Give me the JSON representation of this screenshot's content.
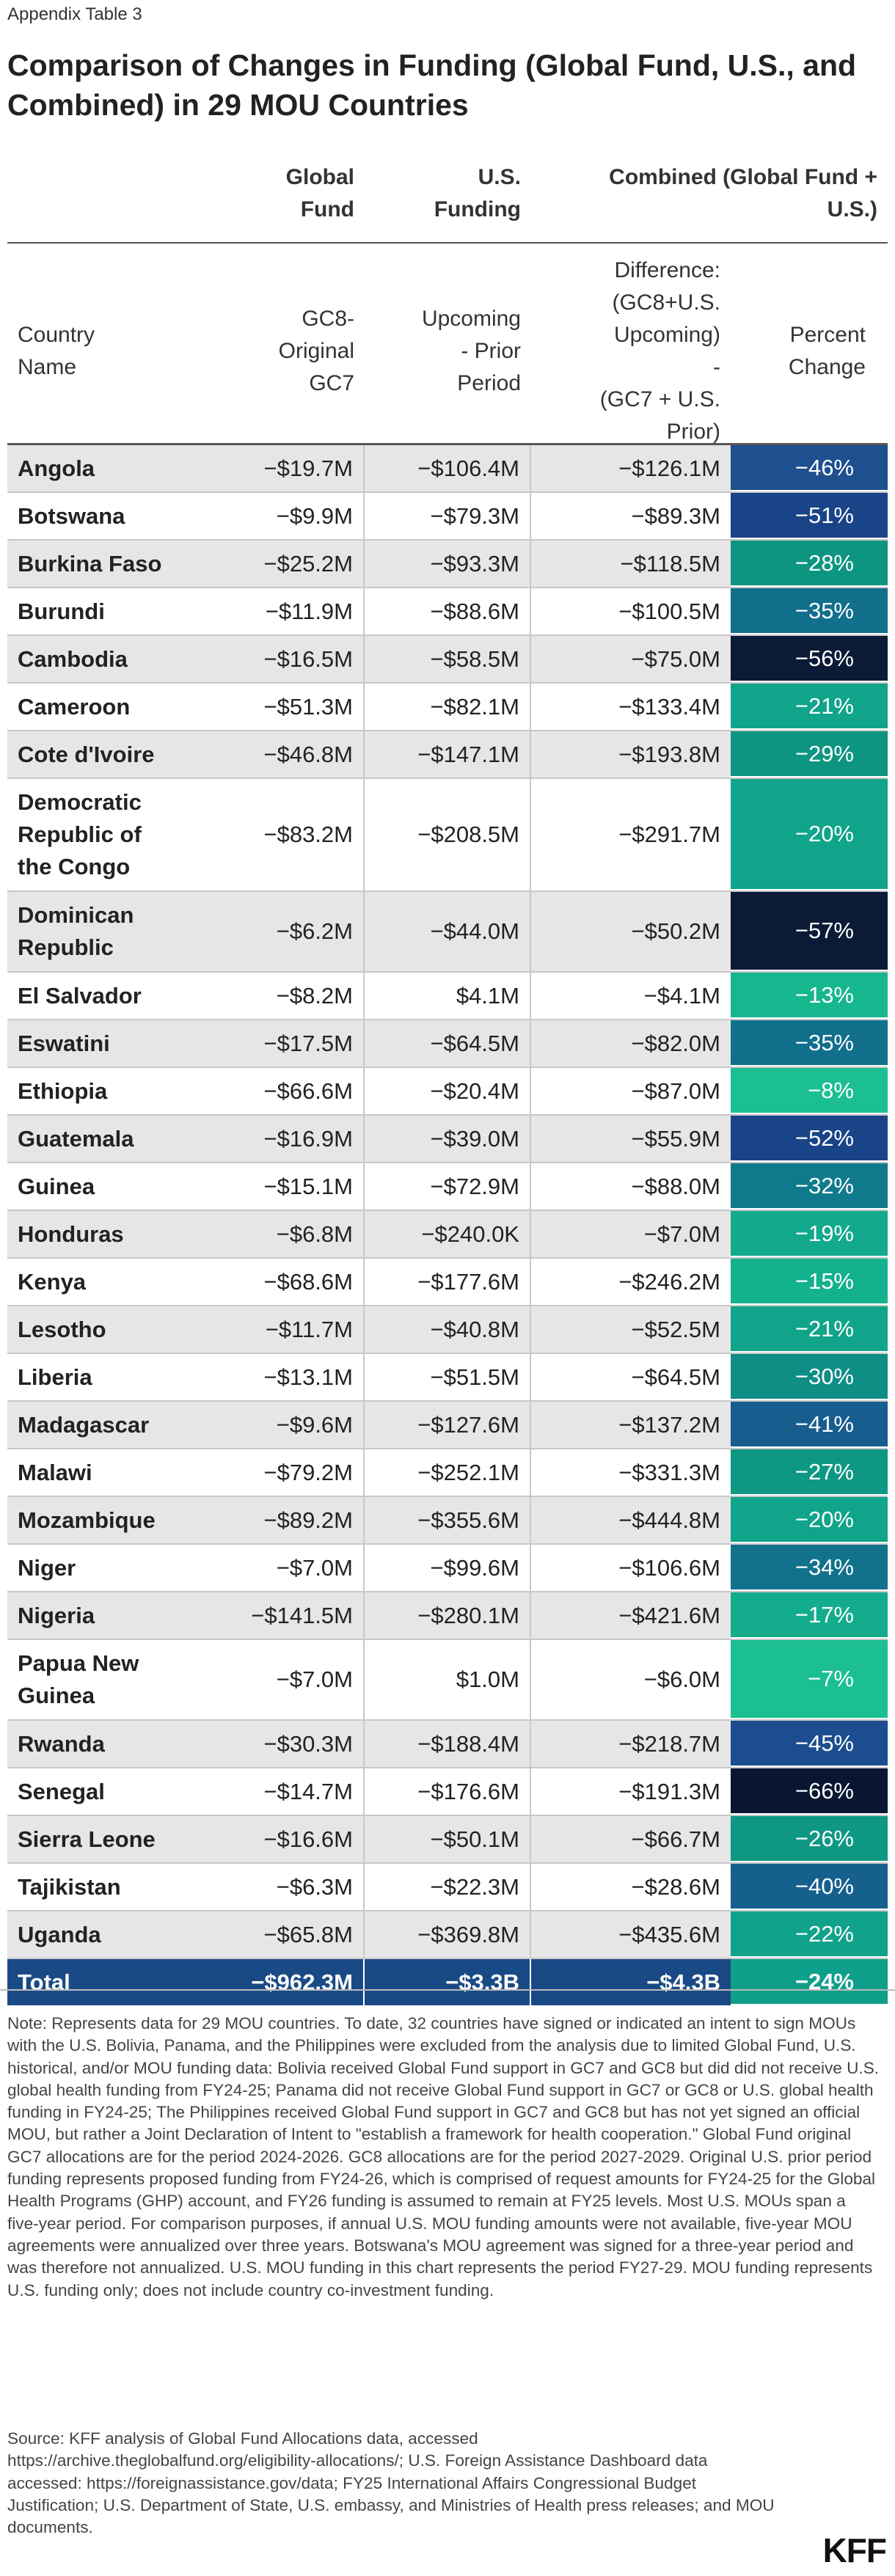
{
  "eyebrow": "Appendix Table 3",
  "title": "Comparison of Changes in Funding (Global Fund, U.S., and Combined) in 29 MOU Countries",
  "group_headers": {
    "global_fund": [
      "Global",
      "Fund"
    ],
    "us_funding": [
      "U.S.",
      "Funding"
    ],
    "combined": [
      "Combined (Global Fund +",
      "U.S.)"
    ]
  },
  "column_headers": {
    "country": [
      "Country",
      "Name"
    ],
    "gc8": [
      "GC8-",
      "Original",
      "GC7"
    ],
    "upcoming": [
      "Upcoming",
      "- Prior",
      "Period"
    ],
    "difference": [
      "Difference:",
      "(GC8+U.S.",
      "Upcoming)",
      "-",
      "(GC7 + U.S.",
      "Prior)"
    ],
    "percent": [
      "Percent",
      "Change"
    ]
  },
  "colors": {
    "total_row": "#1a4a86",
    "total_pct": "#0e9f8a",
    "stripe": "#e6e6e6"
  },
  "rows": [
    {
      "country": [
        "Angola"
      ],
      "gc8": "−$19.7M",
      "us": "−$106.4M",
      "diff": "−$126.1M",
      "pct": "−46%",
      "color": "#1e4f8f"
    },
    {
      "country": [
        "Botswana"
      ],
      "gc8": "−$9.9M",
      "us": "−$79.3M",
      "diff": "−$89.3M",
      "pct": "−51%",
      "color": "#1a4488"
    },
    {
      "country": [
        "Burkina Faso"
      ],
      "gc8": "−$25.2M",
      "us": "−$93.3M",
      "diff": "−$118.5M",
      "pct": "−28%",
      "color": "#0e9582"
    },
    {
      "country": [
        "Burundi"
      ],
      "gc8": "−$11.9M",
      "us": "−$88.6M",
      "diff": "−$100.5M",
      "pct": "−35%",
      "color": "#126f8c"
    },
    {
      "country": [
        "Cambodia"
      ],
      "gc8": "−$16.5M",
      "us": "−$58.5M",
      "diff": "−$75.0M",
      "pct": "−56%",
      "color": "#0b1b36"
    },
    {
      "country": [
        "Cameroon"
      ],
      "gc8": "−$51.3M",
      "us": "−$82.1M",
      "diff": "−$133.4M",
      "pct": "−21%",
      "color": "#10a48a"
    },
    {
      "country": [
        "Cote d'Ivoire"
      ],
      "gc8": "−$46.8M",
      "us": "−$147.1M",
      "diff": "−$193.8M",
      "pct": "−29%",
      "color": "#0e9582"
    },
    {
      "country": [
        "Democratic",
        "Republic of",
        "the Congo"
      ],
      "gc8": "−$83.2M",
      "us": "−$208.5M",
      "diff": "−$291.7M",
      "pct": "−20%",
      "color": "#10a48a"
    },
    {
      "country": [
        "Dominican",
        "Republic"
      ],
      "gc8": "−$6.2M",
      "us": "−$44.0M",
      "diff": "−$50.2M",
      "pct": "−57%",
      "color": "#0b1b36"
    },
    {
      "country": [
        "El Salvador"
      ],
      "gc8": "−$8.2M",
      "us": "$4.1M",
      "diff": "−$4.1M",
      "pct": "−13%",
      "color": "#16b68f"
    },
    {
      "country": [
        "Eswatini"
      ],
      "gc8": "−$17.5M",
      "us": "−$64.5M",
      "diff": "−$82.0M",
      "pct": "−35%",
      "color": "#126f8c"
    },
    {
      "country": [
        "Ethiopia"
      ],
      "gc8": "−$66.6M",
      "us": "−$20.4M",
      "diff": "−$87.0M",
      "pct": "−8%",
      "color": "#1bbf92"
    },
    {
      "country": [
        "Guatemala"
      ],
      "gc8": "−$16.9M",
      "us": "−$39.0M",
      "diff": "−$55.9M",
      "pct": "−52%",
      "color": "#1a4488"
    },
    {
      "country": [
        "Guinea"
      ],
      "gc8": "−$15.1M",
      "us": "−$72.9M",
      "diff": "−$88.0M",
      "pct": "−32%",
      "color": "#107a8c"
    },
    {
      "country": [
        "Honduras"
      ],
      "gc8": "−$6.8M",
      "us": "−$240.0K",
      "diff": "−$7.0M",
      "pct": "−19%",
      "color": "#12a98c"
    },
    {
      "country": [
        "Kenya"
      ],
      "gc8": "−$68.6M",
      "us": "−$177.6M",
      "diff": "−$246.2M",
      "pct": "−15%",
      "color": "#14b18e"
    },
    {
      "country": [
        "Lesotho"
      ],
      "gc8": "−$11.7M",
      "us": "−$40.8M",
      "diff": "−$52.5M",
      "pct": "−21%",
      "color": "#10a48a"
    },
    {
      "country": [
        "Liberia"
      ],
      "gc8": "−$13.1M",
      "us": "−$51.5M",
      "diff": "−$64.5M",
      "pct": "−30%",
      "color": "#0f8e86"
    },
    {
      "country": [
        "Madagascar"
      ],
      "gc8": "−$9.6M",
      "us": "−$127.6M",
      "diff": "−$137.2M",
      "pct": "−41%",
      "color": "#175d8e"
    },
    {
      "country": [
        "Malawi"
      ],
      "gc8": "−$79.2M",
      "us": "−$252.1M",
      "diff": "−$331.3M",
      "pct": "−27%",
      "color": "#0e9884"
    },
    {
      "country": [
        "Mozambique"
      ],
      "gc8": "−$89.2M",
      "us": "−$355.6M",
      "diff": "−$444.8M",
      "pct": "−20%",
      "color": "#10a48a"
    },
    {
      "country": [
        "Niger"
      ],
      "gc8": "−$7.0M",
      "us": "−$99.6M",
      "diff": "−$106.6M",
      "pct": "−34%",
      "color": "#12728c"
    },
    {
      "country": [
        "Nigeria"
      ],
      "gc8": "−$141.5M",
      "us": "−$280.1M",
      "diff": "−$421.6M",
      "pct": "−17%",
      "color": "#13ad8d"
    },
    {
      "country": [
        "Papua New",
        "Guinea"
      ],
      "gc8": "−$7.0M",
      "us": "$1.0M",
      "diff": "−$6.0M",
      "pct": "−7%",
      "color": "#1bbf92"
    },
    {
      "country": [
        "Rwanda"
      ],
      "gc8": "−$30.3M",
      "us": "−$188.4M",
      "diff": "−$218.7M",
      "pct": "−45%",
      "color": "#1c4e8f"
    },
    {
      "country": [
        "Senegal"
      ],
      "gc8": "−$14.7M",
      "us": "−$176.6M",
      "diff": "−$191.3M",
      "pct": "−66%",
      "color": "#081632"
    },
    {
      "country": [
        "Sierra Leone"
      ],
      "gc8": "−$16.6M",
      "us": "−$50.1M",
      "diff": "−$66.7M",
      "pct": "−26%",
      "color": "#0e9884"
    },
    {
      "country": [
        "Tajikistan"
      ],
      "gc8": "−$6.3M",
      "us": "−$22.3M",
      "diff": "−$28.6M",
      "pct": "−40%",
      "color": "#16608d"
    },
    {
      "country": [
        "Uganda"
      ],
      "gc8": "−$65.8M",
      "us": "−$369.8M",
      "diff": "−$435.6M",
      "pct": "−22%",
      "color": "#10a28a"
    }
  ],
  "total": {
    "country": "Total",
    "gc8": "−$962.3M",
    "us": "−$3.3B",
    "diff": "−$4.3B",
    "pct": "−24%"
  },
  "note": "Note: Represents data for 29 MOU countries. To date, 32 countries have signed or indicated an intent to sign MOUs with the U.S. Bolivia, Panama, and the Philippines were excluded from the analysis due to limited Global Fund, U.S. historical, and/or MOU funding data: Bolivia received Global Fund support in GC7 and GC8 but did did not receive U.S. global health funding from FY24-25; Panama did not receive Global Fund support in GC7 or GC8 or U.S. global health funding in FY24-25; The Philippines received Global Fund support in GC7 and GC8 but has not yet signed an official MOU, but rather a Joint Declaration of Intent to \"establish a framework for health cooperation.\" Global Fund original GC7 allocations are for the period 2024-2026. GC8 allocations are for the period 2027-2029. Original U.S. prior period funding represents proposed funding from FY24-26, which is comprised of request amounts for FY24-25 for the Global Health Programs (GHP) account, and FY26 funding is assumed to remain at FY25 levels. Most U.S. MOUs span a five-year period. For comparison purposes, if annual U.S. MOU funding amounts were not available, five-year MOU agreements were annualized over three years. Botswana's MOU agreement was signed for a three-year period and was therefore not annualized. U.S. MOU funding in this chart represents the period FY27-29. MOU funding represents U.S. funding only; does not include country co-investment funding.",
  "source": "Source: KFF analysis of Global Fund Allocations data, accessed https://archive.theglobalfund.org/eligibility-allocations/; U.S. Foreign Assistance Dashboard data accessed: https://foreignassistance.gov/data; FY25 International Affairs Congressional Budget Justification; U.S. Department of State, U.S. embassy, and Ministries of Health press releases; and MOU documents.",
  "logo": "KFF"
}
